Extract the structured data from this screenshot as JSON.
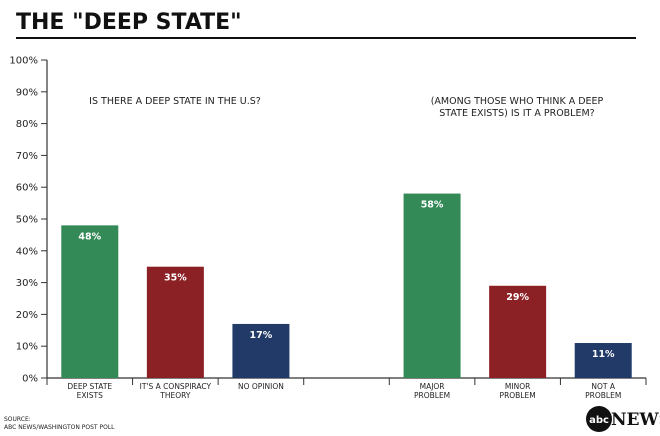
{
  "title": "THE \"DEEP STATE\"",
  "source_label": "SOURCE:",
  "source_text": "ABC NEWS/WASHINGTON POST POLL",
  "logo": {
    "abc": "abc",
    "news": "NEWS"
  },
  "chart_data": {
    "type": "bar",
    "ylim": [
      0,
      100
    ],
    "yticks": [
      "0%",
      "10%",
      "20%",
      "30%",
      "40%",
      "50%",
      "60%",
      "70%",
      "80%",
      "90%",
      "100%"
    ],
    "grid": false,
    "panels": [
      {
        "subtitle": [
          "IS THERE A DEEP STATE IN THE U.S?"
        ],
        "categories": [
          [
            "DEEP STATE",
            "EXISTS"
          ],
          [
            "IT'S A CONSPIRACY",
            "THEORY"
          ],
          [
            "NO OPINION"
          ]
        ],
        "values": [
          48,
          35,
          17
        ],
        "labels": [
          "48%",
          "35%",
          "17%"
        ],
        "colors": [
          "#348a57",
          "#8c2125",
          "#213a68"
        ]
      },
      {
        "subtitle": [
          "(AMONG THOSE WHO THINK A DEEP",
          "STATE EXISTS) IS IT A PROBLEM?"
        ],
        "categories": [
          [
            "MAJOR",
            "PROBLEM"
          ],
          [
            "MINOR",
            "PROBLEM"
          ],
          [
            "NOT A",
            "PROBLEM"
          ]
        ],
        "values": [
          58,
          29,
          11
        ],
        "labels": [
          "58%",
          "29%",
          "11%"
        ],
        "colors": [
          "#348a57",
          "#8c2125",
          "#213a68"
        ]
      }
    ]
  }
}
